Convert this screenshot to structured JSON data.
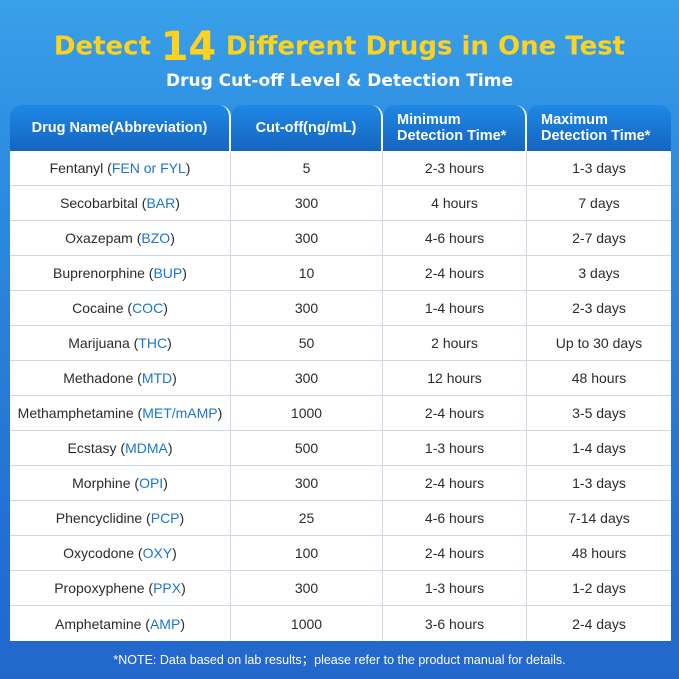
{
  "heading": {
    "before": "Detect",
    "number": "14",
    "after": "Different Drugs in One Test",
    "subtitle": "Drug Cut-off Level & Detection Time",
    "title_color": "#ffd21f"
  },
  "table": {
    "headers": [
      "Drug Name(Abbreviation)",
      "Cut-off(ng/mL)",
      "Minimum Detection Time*",
      "Maximum Detection Time*"
    ],
    "header_color": "#1e88e5",
    "abbr_color": "#1976d2",
    "rows": [
      {
        "name": "Fentanyl",
        "abbr": "FEN or FYL",
        "cutoff": "5",
        "min": "2-3 hours",
        "max": "1-3 days"
      },
      {
        "name": "Secobarbital",
        "abbr": "BAR",
        "cutoff": "300",
        "min": "4 hours",
        "max": "7 days"
      },
      {
        "name": "Oxazepam",
        "abbr": "BZO",
        "cutoff": "300",
        "min": "4-6 hours",
        "max": "2-7 days"
      },
      {
        "name": "Buprenorphine",
        "abbr": "BUP",
        "cutoff": "10",
        "min": "2-4 hours",
        "max": "3 days"
      },
      {
        "name": "Cocaine",
        "abbr": "COC",
        "cutoff": "300",
        "min": "1-4 hours",
        "max": "2-3 days"
      },
      {
        "name": "Marijuana",
        "abbr": "THC",
        "cutoff": "50",
        "min": "2 hours",
        "max": "Up to 30 days"
      },
      {
        "name": "Methadone",
        "abbr": "MTD",
        "cutoff": "300",
        "min": "12 hours",
        "max": "48 hours"
      },
      {
        "name": "Methamphetamine",
        "abbr": "MET/mAMP",
        "cutoff": "1000",
        "min": "2-4 hours",
        "max": "3-5 days"
      },
      {
        "name": "Ecstasy",
        "abbr": "MDMA",
        "cutoff": "500",
        "min": "1-3 hours",
        "max": "1-4 days"
      },
      {
        "name": "Morphine",
        "abbr": "OPI",
        "cutoff": "300",
        "min": "2-4 hours",
        "max": "1-3 days"
      },
      {
        "name": "Phencyclidine",
        "abbr": "PCP",
        "cutoff": "25",
        "min": "4-6 hours",
        "max": "7-14 days"
      },
      {
        "name": "Oxycodone",
        "abbr": "OXY",
        "cutoff": "100",
        "min": "2-4 hours",
        "max": "48 hours"
      },
      {
        "name": "Propoxyphene",
        "abbr": "PPX",
        "cutoff": "300",
        "min": "1-3 hours",
        "max": "1-2 days"
      },
      {
        "name": "Amphetamine",
        "abbr": "AMP",
        "cutoff": "1000",
        "min": "3-6 hours",
        "max": "2-4 days"
      }
    ]
  },
  "note": "*NOTE: Data based on lab results；please refer to the product manual for details."
}
